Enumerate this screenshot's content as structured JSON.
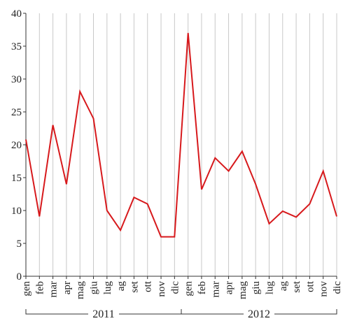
{
  "chart_data": {
    "type": "line",
    "title": "",
    "xlabel": "",
    "ylabel": "",
    "ylim": [
      0,
      40
    ],
    "yticks": [
      0,
      5,
      10,
      15,
      20,
      25,
      30,
      35,
      40
    ],
    "grid": "vertical",
    "categories": [
      "gen",
      "feb",
      "mar",
      "apr",
      "mag",
      "giu",
      "lug",
      "ag",
      "set",
      "ott",
      "nov",
      "dic",
      "gen",
      "feb",
      "mar",
      "apr",
      "mag",
      "giu",
      "lug",
      "ag",
      "set",
      "ott",
      "nov",
      "dic"
    ],
    "year_groups": [
      {
        "label": "2011",
        "start": 0,
        "end": 11
      },
      {
        "label": "2012",
        "start": 12,
        "end": 23
      }
    ],
    "series": [
      {
        "color": "#d7191c",
        "values": [
          20.8,
          9.1,
          23.0,
          14.0,
          28.1,
          24.0,
          10.0,
          7.0,
          12.0,
          11.0,
          6.0,
          6.0,
          37.0,
          13.2,
          18.0,
          16.0,
          19.0,
          14.0,
          8.0,
          9.9,
          9.0,
          11.0,
          16.0,
          9.1
        ]
      }
    ]
  }
}
